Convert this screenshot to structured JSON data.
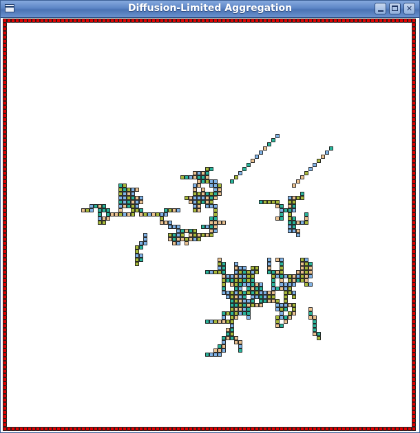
{
  "window": {
    "title": "Diffusion-Limited Aggregation",
    "buttons": {
      "minimize": "minimize",
      "maximize": "maximize",
      "close": "✕"
    }
  },
  "colors": {
    "border_cells": "#e00000",
    "particles": [
      "#a7b83a",
      "#29b39a",
      "#7fb2e6",
      "#e9c08f"
    ],
    "background": "#ffffff",
    "cell_outline": "#000000"
  },
  "icons": {
    "window_menu": "window-menu-icon",
    "minimize": "minimize-icon",
    "maximize": "maximize-icon",
    "close": "close-icon"
  }
}
